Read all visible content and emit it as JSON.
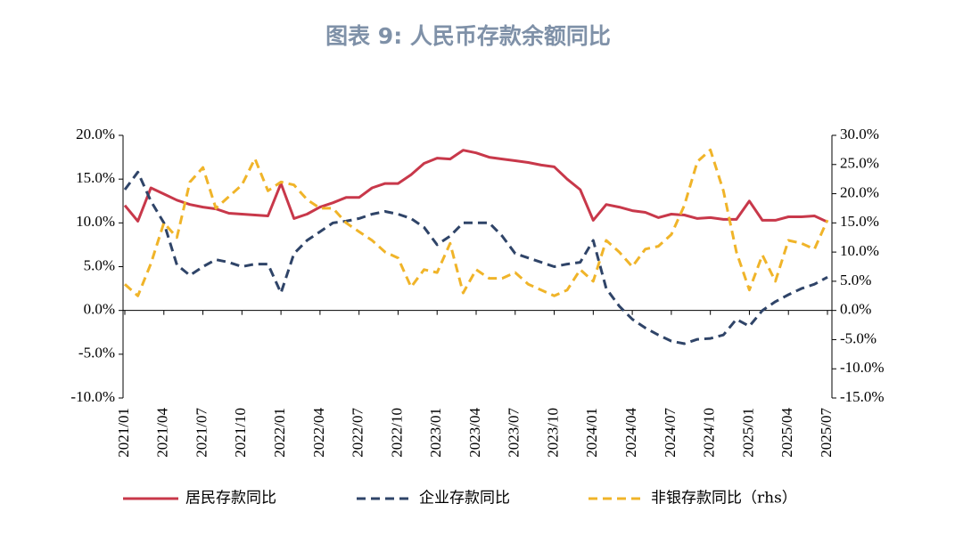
{
  "chart_data": {
    "type": "line",
    "title": "图表 9: 人民币存款余额同比",
    "categories": [
      "2021/01",
      null,
      null,
      "2021/04",
      null,
      null,
      "2021/07",
      null,
      null,
      "2021/10",
      null,
      null,
      "2022/01",
      null,
      null,
      "2022/04",
      null,
      null,
      "2022/07",
      null,
      null,
      "2022/10",
      null,
      null,
      "2023/01",
      null,
      null,
      "2023/04",
      null,
      null,
      "2023/07",
      null,
      null,
      "2023/10",
      null,
      null,
      "2024/01",
      null,
      null,
      "2024/04",
      null,
      null,
      "2024/07",
      null,
      null,
      "2024/10",
      null,
      null,
      "2025/01",
      null,
      null,
      "2025/04",
      null,
      null,
      "2025/07"
    ],
    "ylim": [
      -10,
      20
    ],
    "yticks": [
      {
        "value": -10,
        "label": "-10.0%"
      },
      {
        "value": -5,
        "label": "-5.0%"
      },
      {
        "value": 0,
        "label": "0.0%"
      },
      {
        "value": 5,
        "label": "5.0%"
      },
      {
        "value": 10,
        "label": "10.0%"
      },
      {
        "value": 15,
        "label": "15.0%"
      },
      {
        "value": 20,
        "label": "20.0%"
      }
    ],
    "y2lim": [
      -15,
      30
    ],
    "y2ticks": [
      {
        "value": -15,
        "label": "-15.0%"
      },
      {
        "value": -10,
        "label": "-10.0%"
      },
      {
        "value": -5,
        "label": "-5.0%"
      },
      {
        "value": 0,
        "label": "0.0%"
      },
      {
        "value": 5,
        "label": "5.0%"
      },
      {
        "value": 10,
        "label": "10.0%"
      },
      {
        "value": 15,
        "label": "15.0%"
      },
      {
        "value": 20,
        "label": "20.0%"
      },
      {
        "value": 25,
        "label": "25.0%"
      },
      {
        "value": 30,
        "label": "30.0%"
      }
    ],
    "series": [
      {
        "name": "居民存款同比",
        "color": "#c8384a",
        "dashed": false,
        "values": [
          12.0,
          10.2,
          14.0,
          13.3,
          12.6,
          12.1,
          11.8,
          11.6,
          11.1,
          11.0,
          10.9,
          10.8,
          14.5,
          10.5,
          11.0,
          11.8,
          12.3,
          12.9,
          12.9,
          14.0,
          14.5,
          14.5,
          15.5,
          16.8,
          17.4,
          17.3,
          18.3,
          18.0,
          17.5,
          17.3,
          17.1,
          16.9,
          16.6,
          16.4,
          15.0,
          13.8,
          10.3,
          12.1,
          11.8,
          11.4,
          11.2,
          10.6,
          11.0,
          10.9,
          10.5,
          10.6,
          10.4,
          10.4,
          12.5,
          10.3,
          10.3,
          10.7,
          10.7,
          10.8,
          10.1
        ]
      },
      {
        "name": "企业存款同比",
        "color": "#2f4468",
        "dashed": true,
        "values": [
          13.8,
          15.8,
          12.5,
          10.0,
          5.2,
          4.0,
          5.0,
          5.8,
          5.5,
          5.0,
          5.3,
          5.3,
          2.0,
          6.5,
          8.0,
          9.0,
          10.0,
          10.2,
          10.5,
          11.0,
          11.3,
          11.0,
          10.5,
          9.5,
          7.5,
          8.5,
          10.0,
          10.0,
          10.0,
          8.5,
          6.5,
          6.0,
          5.5,
          5.0,
          5.3,
          5.5,
          8.0,
          2.5,
          0.5,
          -1.0,
          -2.0,
          -2.8,
          -3.5,
          -3.8,
          -3.3,
          -3.2,
          -2.8,
          -1.0,
          -1.8,
          0.0,
          1.0,
          1.8,
          2.5,
          3.0,
          3.8
        ]
      },
      {
        "name": "非银存款同比（rhs）",
        "color": "#f0b429",
        "dashed": true,
        "axis": "y2",
        "values": [
          4.5,
          2.5,
          8.0,
          15.0,
          12.5,
          22.0,
          24.5,
          17.5,
          19.5,
          21.5,
          26.0,
          20.5,
          22.0,
          21.5,
          19.0,
          17.5,
          17.5,
          15.0,
          13.5,
          12.0,
          10.0,
          9.0,
          4.0,
          7.0,
          6.5,
          11.5,
          3.0,
          7.0,
          5.5,
          5.5,
          6.5,
          4.5,
          3.5,
          2.5,
          3.5,
          7.0,
          5.0,
          12.0,
          10.0,
          7.5,
          10.5,
          11.0,
          13.0,
          18.0,
          25.5,
          27.5,
          20.5,
          10.0,
          3.5,
          9.5,
          5.0,
          12.0,
          11.5,
          10.5,
          15.5
        ]
      }
    ]
  }
}
